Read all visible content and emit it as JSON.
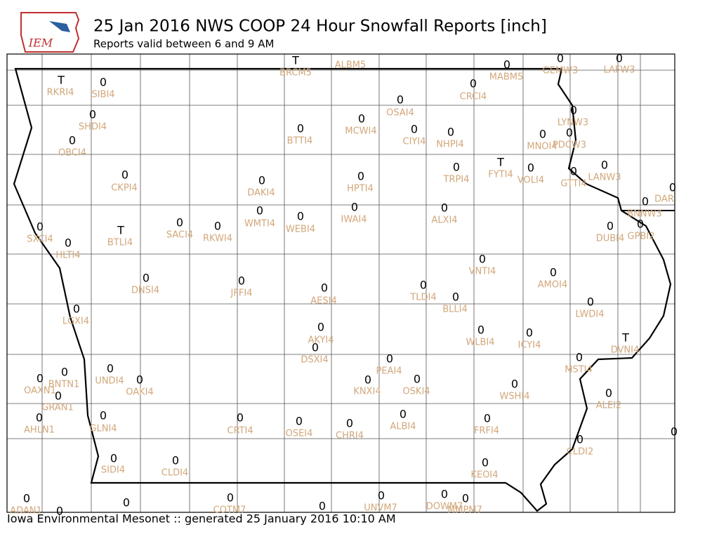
{
  "header": {
    "logo_text": "IEM",
    "title": "25 Jan 2016 NWS COOP 24 Hour Snowfall Reports [inch]",
    "subtitle": "Reports valid between 6 and 9 AM"
  },
  "footer": "Iowa Environmental Mesonet :: generated 25 January 2016 10:10 AM",
  "stations": [
    {
      "id": "RKRI4",
      "value": "T"
    },
    {
      "id": "SIBI4",
      "value": 0
    },
    {
      "id": "SHDI4",
      "value": 0
    },
    {
      "id": "OBCI4",
      "value": 0
    },
    {
      "id": "CKPI4",
      "value": 0
    },
    {
      "id": "SXCI4",
      "value": 0
    },
    {
      "id": "HLTI4",
      "value": 0
    },
    {
      "id": "BTLI4",
      "value": "T"
    },
    {
      "id": "SACI4",
      "value": 0
    },
    {
      "id": "RKWI4",
      "value": 0
    },
    {
      "id": "DAKI4",
      "value": 0
    },
    {
      "id": "WMTI4",
      "value": 0
    },
    {
      "id": "WEBI4",
      "value": 0
    },
    {
      "id": "BRCM5",
      "value": "T"
    },
    {
      "id": "ALBM5"
    },
    {
      "id": "BTTI4",
      "value": 0
    },
    {
      "id": "MCWI4",
      "value": 0
    },
    {
      "id": "OSAI4",
      "value": 0
    },
    {
      "id": "CIYI4",
      "value": 0
    },
    {
      "id": "NHPI4",
      "value": 0
    },
    {
      "id": "CRCI4",
      "value": 0
    },
    {
      "id": "MABM5",
      "value": 0
    },
    {
      "id": "GEMW3",
      "value": 0
    },
    {
      "id": "LAFW3",
      "value": 0
    },
    {
      "id": "LYNW3",
      "value": 0
    },
    {
      "id": "MNOI4",
      "value": 0
    },
    {
      "id": "PDCW3",
      "value": 0
    },
    {
      "id": "HPTI4",
      "value": 0
    },
    {
      "id": "IWAI4",
      "value": 0
    },
    {
      "id": "TRPI4",
      "value": 0
    },
    {
      "id": "FYTI4",
      "value": "T"
    },
    {
      "id": "VOLI4",
      "value": 0
    },
    {
      "id": "GTTI4",
      "value": 0
    },
    {
      "id": "LANW3",
      "value": 0
    },
    {
      "id": "DAR",
      "value": 0
    },
    {
      "id": "BNNW3",
      "value": 0
    },
    {
      "id": "ALXI4",
      "value": 0
    },
    {
      "id": "DUBI4",
      "value": 0
    },
    {
      "id": "GPBI2",
      "value": 0
    },
    {
      "id": "VNTI4",
      "value": 0
    },
    {
      "id": "AMOI4",
      "value": 0
    },
    {
      "id": "DNSI4",
      "value": 0
    },
    {
      "id": "JFFI4",
      "value": 0
    },
    {
      "id": "AESI4",
      "value": 0
    },
    {
      "id": "TLDI4",
      "value": 0
    },
    {
      "id": "BLLI4",
      "value": 0
    },
    {
      "id": "LWDI4",
      "value": 0
    },
    {
      "id": "LGXI4",
      "value": 0
    },
    {
      "id": "AKYI4",
      "value": 0
    },
    {
      "id": "DSXI4",
      "value": 0
    },
    {
      "id": "WLBI4",
      "value": 0
    },
    {
      "id": "ICYI4",
      "value": 0
    },
    {
      "id": "DVNI4",
      "value": "T"
    },
    {
      "id": "MSTI4",
      "value": 0
    },
    {
      "id": "PEAI4",
      "value": 0
    },
    {
      "id": "UNDI4",
      "value": 0
    },
    {
      "id": "OAKI4",
      "value": 0
    },
    {
      "id": "BNTN1",
      "value": 0
    },
    {
      "id": "OAXN1",
      "value": 0
    },
    {
      "id": "GRAN1",
      "value": 0
    },
    {
      "id": "AHLN1",
      "value": 0
    },
    {
      "id": "KNXI4",
      "value": 0
    },
    {
      "id": "OSKI4",
      "value": 0
    },
    {
      "id": "WSHI4",
      "value": 0
    },
    {
      "id": "ALEI2",
      "value": 0
    },
    {
      "id": "GLNI4",
      "value": 0
    },
    {
      "id": "CRTI4",
      "value": 0
    },
    {
      "id": "OSEI4",
      "value": 0
    },
    {
      "id": "CHRI4",
      "value": 0
    },
    {
      "id": "ALBI4",
      "value": 0
    },
    {
      "id": "FRFI4",
      "value": 0
    },
    {
      "value": 0
    },
    {
      "id": "CLDI2",
      "value": 0
    },
    {
      "id": "SIDI4",
      "value": 0
    },
    {
      "id": "CLDI4",
      "value": 0
    },
    {
      "id": "KEOI4",
      "value": 0
    },
    {
      "id": "ADAN1",
      "value": 0
    },
    {
      "value": 0
    },
    {
      "value": 0
    },
    {
      "id": "COTM7",
      "value": 0
    },
    {
      "value": 0
    },
    {
      "id": "UNVM7",
      "value": 0
    },
    {
      "id": "DOWM7",
      "value": 0
    },
    {
      "id": "MMPM7",
      "value": 0
    }
  ]
}
